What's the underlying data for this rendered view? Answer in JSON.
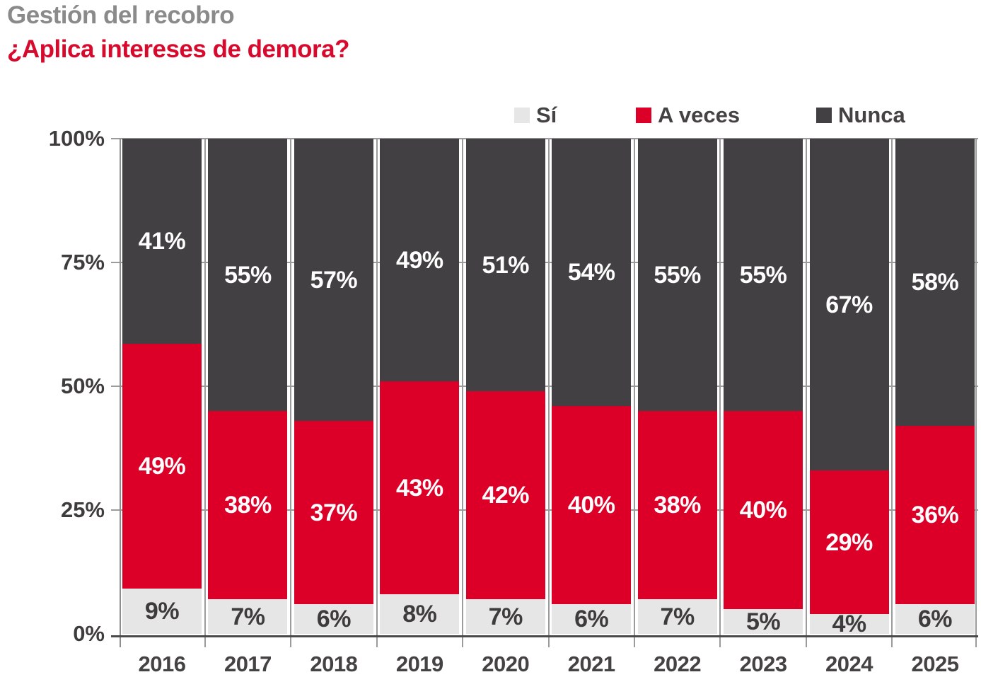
{
  "title": "Gestión del recobro",
  "subtitle": "¿Aplica intereses de demora?",
  "colors": {
    "title_gray": "#8a8a8a",
    "subtitle_red": "#d70a2d",
    "si": "#e7e6e6",
    "a_veces": "#dc0029",
    "nunca": "#424042",
    "label_on_light": "#3d3b3c",
    "label_on_dark": "#ffffff",
    "grid": "#9b9b9b",
    "axis": "#4a4848",
    "axis_text": "#3e3c3d"
  },
  "legend": [
    {
      "label": "Sí",
      "color_key": "si"
    },
    {
      "label": "A veces",
      "color_key": "a_veces"
    },
    {
      "label": "Nunca",
      "color_key": "nunca"
    }
  ],
  "y_axis": {
    "ticks": [
      {
        "label": "100%",
        "value": 100
      },
      {
        "label": "75%",
        "value": 75
      },
      {
        "label": "50%",
        "value": 50
      },
      {
        "label": "25%",
        "value": 25
      },
      {
        "label": "0%",
        "value": 0
      }
    ]
  },
  "chart_data": {
    "type": "bar",
    "stacked": true,
    "title": "Gestión del recobro",
    "subtitle": "¿Aplica intereses de demora?",
    "unit": "%",
    "ylim": [
      0,
      100
    ],
    "y_ticks": [
      0,
      25,
      50,
      75,
      100
    ],
    "legend_position": "top",
    "grid": "on",
    "categories": [
      "2016",
      "2017",
      "2018",
      "2019",
      "2020",
      "2021",
      "2022",
      "2023",
      "2024",
      "2025"
    ],
    "series": [
      {
        "name": "Sí",
        "color_key": "si",
        "label_color_key": "label_on_light",
        "values": [
          9,
          7,
          6,
          8,
          7,
          6,
          7,
          5,
          4,
          6
        ]
      },
      {
        "name": "A veces",
        "color_key": "a_veces",
        "label_color_key": "label_on_dark",
        "values": [
          49,
          38,
          37,
          43,
          42,
          40,
          38,
          40,
          29,
          36
        ]
      },
      {
        "name": "Nunca",
        "color_key": "nunca",
        "label_color_key": "label_on_dark",
        "values": [
          41,
          55,
          57,
          49,
          51,
          54,
          55,
          55,
          67,
          58
        ]
      }
    ]
  }
}
